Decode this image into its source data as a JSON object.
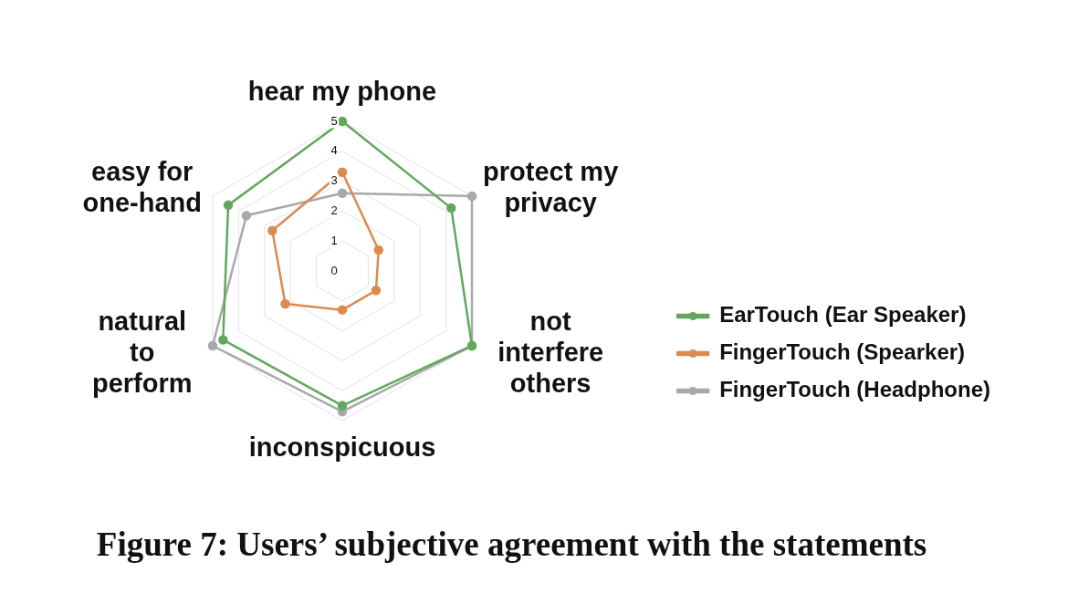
{
  "chart_data": {
    "type": "radar",
    "title": "Figure 7: Users’ subjective agreement with the statements",
    "categories": [
      "hear my phone",
      "protect my\nprivacy",
      "not\ninterfere\nothers",
      "inconspicuous",
      "natural\nto\nperform",
      "easy for\none-hand"
    ],
    "series": [
      {
        "name": "EarTouch (Ear Speaker)",
        "color": "#62a85c",
        "values": [
          5,
          4.2,
          5,
          4.5,
          4.6,
          4.4
        ]
      },
      {
        "name": "FingerTouch (Spearker)",
        "color": "#dc8a50",
        "values": [
          3.3,
          1.4,
          1.3,
          1.3,
          2.2,
          2.7
        ]
      },
      {
        "name": "FingerTouch (Headphone)",
        "color": "#a9a9a9",
        "values": [
          2.6,
          5,
          5,
          4.7,
          5,
          3.7
        ]
      }
    ],
    "ylim": [
      0,
      5
    ],
    "yticks": [
      0,
      1,
      2,
      3,
      4,
      5
    ],
    "grid": true,
    "legend": "right",
    "marker": "circle"
  }
}
